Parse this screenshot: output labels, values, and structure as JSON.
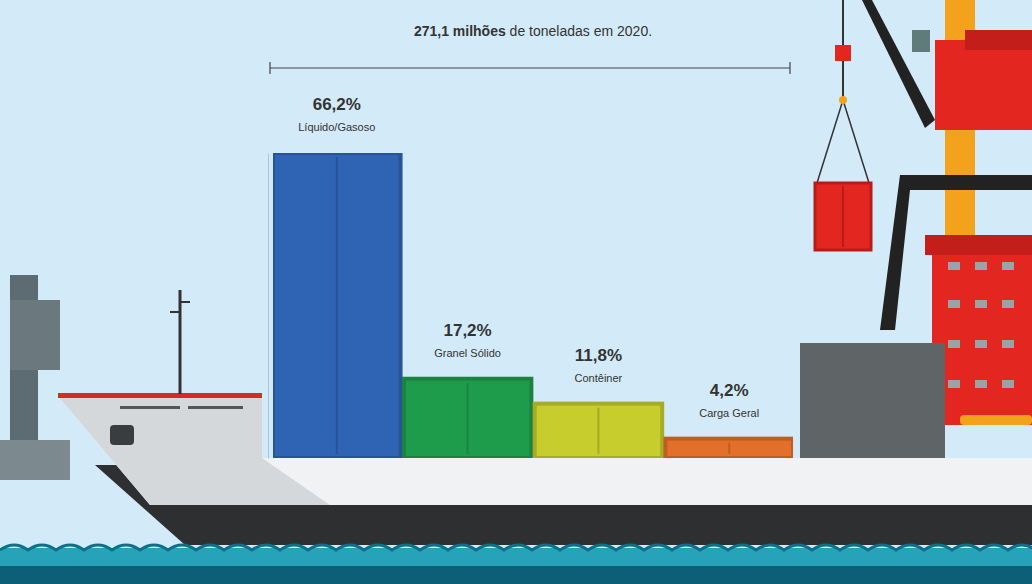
{
  "chart_data": {
    "type": "bar",
    "title": "271,1 milhões de toneladas em 2020.",
    "categories": [
      "Líquido/Gasoso",
      "Granel Sólido",
      "Contêiner",
      "Carga Geral"
    ],
    "values": [
      66.2,
      17.2,
      11.8,
      4.2
    ],
    "value_labels": [
      "66,2%",
      "17,2%",
      "11,8%",
      "4,2%"
    ],
    "colors": [
      "#2f63b4",
      "#1f9c4b",
      "#c6cd2c",
      "#e3702a"
    ],
    "ylim": [
      0,
      66.2
    ],
    "yticks": [],
    "data_labels": true,
    "tick_labels": false,
    "grid": false
  }
}
